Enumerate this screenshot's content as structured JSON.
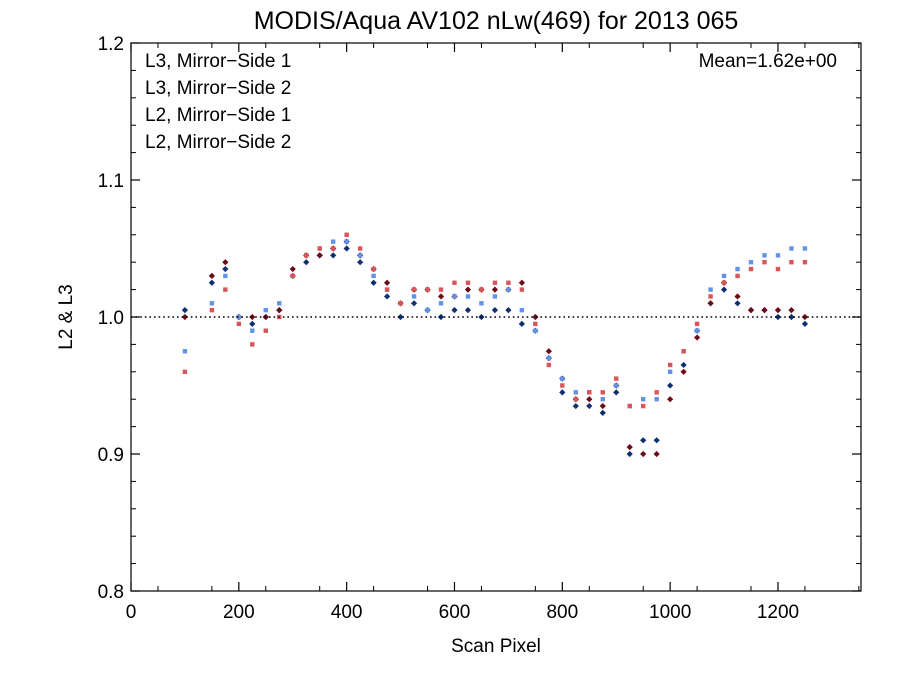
{
  "chart_data": {
    "type": "scatter",
    "title": "MODIS/Aqua AV102 nLw(469) for 2013 065",
    "xlabel": "Scan Pixel",
    "ylabel": "L2 & L3",
    "xlim": [
      0,
      1354
    ],
    "ylim": [
      0.8,
      1.2
    ],
    "xticks": [
      "0",
      "200",
      "400",
      "600",
      "800",
      "1000",
      "1200"
    ],
    "yticks": [
      "0.8",
      "0.9",
      "1.0",
      "1.1",
      "1.2"
    ],
    "reference_line": {
      "y": 1.0,
      "style": "dotted"
    },
    "annotation": "Mean=1.62e+00",
    "annotation_color": "#d9555a",
    "legend_position": "top-left",
    "series": [
      {
        "name": "L3, Mirror−Side 1",
        "color": "#0f3070",
        "x": [
          100,
          150,
          175,
          200,
          225,
          250,
          275,
          300,
          325,
          350,
          375,
          400,
          425,
          450,
          475,
          500,
          525,
          550,
          575,
          600,
          625,
          650,
          675,
          700,
          725,
          750,
          775,
          800,
          825,
          850,
          875,
          900,
          925,
          950,
          975,
          1000,
          1025,
          1050,
          1075,
          1100,
          1125,
          1150,
          1175,
          1200,
          1225,
          1250
        ],
        "y": [
          1.005,
          1.025,
          1.035,
          1.0,
          0.995,
          1.0,
          1.005,
          1.03,
          1.04,
          1.045,
          1.045,
          1.05,
          1.04,
          1.025,
          1.015,
          1.0,
          1.01,
          1.005,
          1.0,
          1.005,
          1.005,
          1.0,
          1.005,
          1.005,
          0.995,
          0.99,
          0.97,
          0.945,
          0.935,
          0.935,
          0.93,
          0.945,
          0.9,
          0.91,
          0.91,
          0.95,
          0.965,
          0.99,
          1.01,
          1.02,
          1.01,
          1.005,
          1.005,
          1.0,
          1.0,
          0.995
        ]
      },
      {
        "name": "L3, Mirror−Side 2",
        "color": "#6e0a16",
        "x": [
          100,
          150,
          175,
          200,
          225,
          250,
          275,
          300,
          325,
          350,
          375,
          400,
          425,
          450,
          475,
          500,
          525,
          550,
          575,
          600,
          625,
          650,
          675,
          700,
          725,
          750,
          775,
          800,
          825,
          850,
          875,
          900,
          925,
          950,
          975,
          1000,
          1025,
          1050,
          1075,
          1100,
          1125,
          1150,
          1175,
          1200,
          1225,
          1250
        ],
        "y": [
          1.0,
          1.03,
          1.04,
          1.0,
          1.0,
          1.0,
          1.005,
          1.035,
          1.045,
          1.045,
          1.05,
          1.055,
          1.045,
          1.035,
          1.025,
          1.01,
          1.02,
          1.02,
          1.015,
          1.015,
          1.02,
          1.02,
          1.02,
          1.02,
          1.025,
          1.0,
          0.975,
          0.955,
          0.94,
          0.94,
          0.935,
          0.95,
          0.905,
          0.9,
          0.9,
          0.94,
          0.96,
          0.985,
          1.01,
          1.025,
          1.015,
          1.005,
          1.005,
          1.005,
          1.005,
          1.0
        ]
      },
      {
        "name": "L2, Mirror−Side 1",
        "color": "#6193e8",
        "x": [
          100,
          150,
          175,
          200,
          225,
          250,
          275,
          300,
          325,
          350,
          375,
          400,
          425,
          450,
          475,
          500,
          525,
          550,
          575,
          600,
          625,
          650,
          675,
          700,
          725,
          750,
          775,
          800,
          825,
          850,
          875,
          900,
          925,
          950,
          975,
          1000,
          1025,
          1050,
          1075,
          1100,
          1125,
          1150,
          1175,
          1200,
          1225,
          1250
        ],
        "y": [
          0.975,
          1.01,
          1.03,
          1.0,
          0.99,
          1.005,
          1.01,
          1.03,
          1.045,
          1.05,
          1.055,
          1.055,
          1.045,
          1.03,
          1.02,
          1.01,
          1.015,
          1.005,
          1.01,
          1.015,
          1.015,
          1.01,
          1.015,
          1.02,
          1.005,
          0.99,
          0.97,
          0.955,
          0.945,
          0.945,
          0.94,
          0.95,
          0.935,
          0.94,
          0.94,
          0.96,
          0.975,
          0.99,
          1.02,
          1.03,
          1.035,
          1.04,
          1.045,
          1.045,
          1.05,
          1.05
        ]
      },
      {
        "name": "L2, Mirror−Side 2",
        "color": "#d9555a",
        "x": [
          100,
          150,
          175,
          200,
          225,
          250,
          275,
          300,
          325,
          350,
          375,
          400,
          425,
          450,
          475,
          500,
          525,
          550,
          575,
          600,
          625,
          650,
          675,
          700,
          725,
          750,
          775,
          800,
          825,
          850,
          875,
          900,
          925,
          950,
          975,
          1000,
          1025,
          1050,
          1075,
          1100,
          1125,
          1150,
          1175,
          1200,
          1225,
          1250
        ],
        "y": [
          0.96,
          1.005,
          1.02,
          0.995,
          0.98,
          0.99,
          1.0,
          1.03,
          1.045,
          1.05,
          1.05,
          1.06,
          1.05,
          1.035,
          1.02,
          1.01,
          1.02,
          1.02,
          1.02,
          1.025,
          1.025,
          1.02,
          1.025,
          1.025,
          1.02,
          0.995,
          0.965,
          0.95,
          0.94,
          0.945,
          0.945,
          0.955,
          0.935,
          0.935,
          0.945,
          0.965,
          0.975,
          0.995,
          1.015,
          1.025,
          1.03,
          1.035,
          1.04,
          1.035,
          1.04,
          1.04
        ]
      }
    ]
  }
}
